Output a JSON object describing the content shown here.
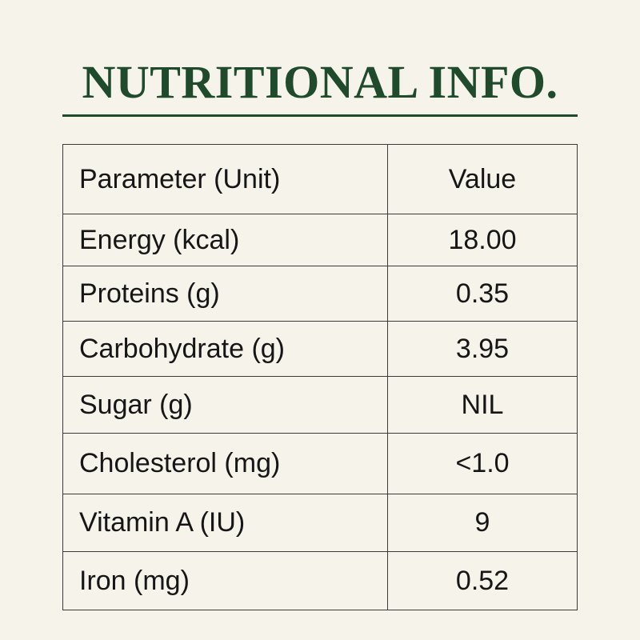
{
  "header": {
    "title": "NUTRITIONAL INFO."
  },
  "table": {
    "columns": [
      "Parameter (Unit)",
      "Value"
    ],
    "rows": [
      [
        "Energy (kcal)",
        "18.00"
      ],
      [
        "Proteins (g)",
        "0.35"
      ],
      [
        "Carbohydrate (g)",
        "3.95"
      ],
      [
        "Sugar (g)",
        "NIL"
      ],
      [
        "Cholesterol (mg)",
        "<1.0"
      ],
      [
        "Vitamin A (IU)",
        "9"
      ],
      [
        "Iron (mg)",
        "0.52"
      ]
    ]
  }
}
